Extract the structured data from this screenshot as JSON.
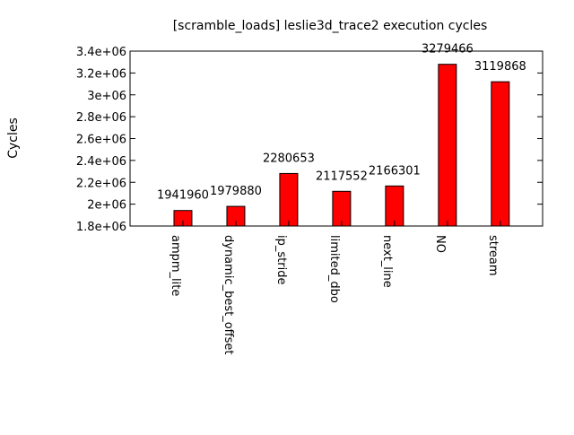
{
  "chart_data": {
    "type": "bar",
    "title": "[scramble_loads] leslie3d_trace2 execution cycles",
    "xlabel": "",
    "ylabel": "Cycles",
    "ylim": [
      1800000,
      3400000
    ],
    "yticks": [
      1800000,
      2000000,
      2200000,
      2400000,
      2600000,
      2800000,
      3000000,
      3200000,
      3400000
    ],
    "ytick_labels": [
      "1.8e+06",
      "2e+06",
      "2.2e+06",
      "2.4e+06",
      "2.6e+06",
      "2.8e+06",
      "3e+06",
      "3.2e+06",
      "3.4e+06"
    ],
    "categories": [
      "ampm_lite",
      "dynamic_best_offset",
      "ip_stride",
      "limited_dbo",
      "next_line",
      "NO",
      "stream"
    ],
    "values": [
      1941960,
      1979880,
      2280653,
      2117552,
      2166301,
      3279466,
      3119868
    ],
    "data_labels": [
      "1941960",
      "1979880",
      "2280653",
      "2117552",
      "2166301",
      "3279466",
      "3119868"
    ],
    "bar_color": "#ff0000",
    "grid": false,
    "legend": "none"
  }
}
